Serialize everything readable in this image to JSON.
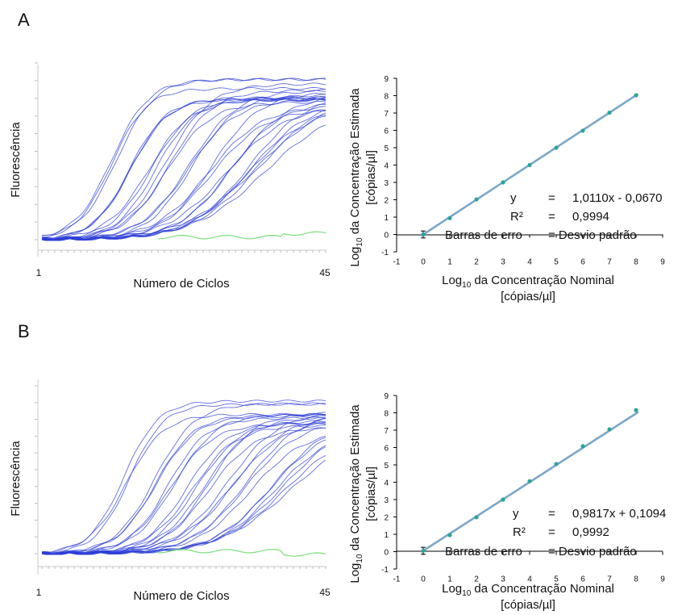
{
  "colors": {
    "amplification_curve": "#2e3fd6",
    "negative_control": "#7be07b",
    "regression_line": "#7ba7c9",
    "point": "#2aa59a",
    "axis": "#000000"
  },
  "panels": [
    {
      "letter": "A",
      "amplification": {
        "ylabel": "Fluorescência",
        "xlabel": "Número de Ciclos",
        "x_start_label": "1",
        "x_end_label": "45"
      },
      "standard": {
        "xlabel_prefix": "Log",
        "xlabel_sub": "10",
        "xlabel_rest": " da Concentração Nominal",
        "xlabel_unit": "[cópias/µl]",
        "ylabel_prefix": "Log",
        "ylabel_sub": "10",
        "ylabel_rest": " da Concentração Estimada",
        "ylabel_unit": "[cópias/µl]",
        "stats": {
          "y_label": "y",
          "y_eq": "=",
          "y_val": "1,0110x - 0,0670",
          "r2_label": "R²",
          "r2_eq": "=",
          "r2_val": "0,9994",
          "err_label": "Barras de erro",
          "err_val": "= Desvio padrão"
        }
      }
    },
    {
      "letter": "B",
      "amplification": {
        "ylabel": "Fluorescência",
        "xlabel": "Número de Ciclos",
        "x_start_label": "1",
        "x_end_label": "45"
      },
      "standard": {
        "xlabel_prefix": "Log",
        "xlabel_sub": "10",
        "xlabel_rest": " da Concentração Nominal",
        "xlabel_unit": "[cópias/µl]",
        "ylabel_prefix": "Log",
        "ylabel_sub": "10",
        "ylabel_rest": " da Concentração Estimada",
        "ylabel_unit": "[cópias/µl]",
        "stats": {
          "y_label": "y",
          "y_eq": "=",
          "y_val": "0,9817x + 0,1094",
          "r2_label": "R²",
          "r2_eq": "=",
          "r2_val": "0,9992",
          "err_label": "Barras de erro",
          "err_val": "= Desvio padrão"
        }
      }
    }
  ],
  "chart_data": [
    {
      "panel": "A",
      "type": "line",
      "xlabel": "Número de Ciclos",
      "ylabel": "Fluorescência",
      "xlim": [
        1,
        45
      ],
      "curve_groups_threshold_cycles": [
        12,
        15,
        18,
        21,
        24,
        27,
        30,
        33.5,
        35
      ],
      "curves_per_group": 3,
      "plateau_level": 0.9,
      "negative_control": "flat"
    },
    {
      "panel": "A",
      "type": "scatter",
      "xlim": [
        -1,
        9
      ],
      "ylim": [
        -1,
        9
      ],
      "x_ticks": [
        -1,
        0,
        1,
        2,
        3,
        4,
        5,
        6,
        7,
        8,
        9
      ],
      "y_ticks": [
        -1,
        0,
        1,
        2,
        3,
        4,
        5,
        6,
        7,
        8,
        9
      ],
      "x": [
        0,
        1,
        2,
        3,
        4,
        5,
        6,
        7,
        8
      ],
      "y": [
        0.0,
        0.94,
        2.02,
        3.0,
        4.0,
        5.0,
        5.98,
        7.02,
        8.02
      ],
      "fit": {
        "slope": 1.011,
        "intercept": -0.067,
        "r2": 0.9994
      },
      "error_bar_at_x0": 0.2
    },
    {
      "panel": "B",
      "type": "line",
      "xlabel": "Número de Ciclos",
      "ylabel": "Fluorescência",
      "xlim": [
        1,
        45
      ],
      "curve_groups_threshold_cycles": [
        14,
        18,
        21,
        24,
        27,
        30,
        33,
        36.5,
        39
      ],
      "curves_per_group": 3,
      "plateau_level": 0.9,
      "negative_control": "flat"
    },
    {
      "panel": "B",
      "type": "scatter",
      "xlim": [
        -1,
        9
      ],
      "ylim": [
        -1,
        9
      ],
      "x_ticks": [
        -1,
        0,
        1,
        2,
        3,
        4,
        5,
        6,
        7,
        8,
        9
      ],
      "y_ticks": [
        -1,
        0,
        1,
        2,
        3,
        4,
        5,
        6,
        7,
        8,
        9
      ],
      "x": [
        0,
        1,
        2,
        3,
        4,
        5,
        6,
        7,
        8
      ],
      "y": [
        0.05,
        0.95,
        1.98,
        3.0,
        4.06,
        5.05,
        6.08,
        7.05,
        8.15
      ],
      "fit": {
        "slope": 0.9817,
        "intercept": 0.1094,
        "r2": 0.9992
      },
      "error_bar_at_x0": 0.2
    }
  ]
}
